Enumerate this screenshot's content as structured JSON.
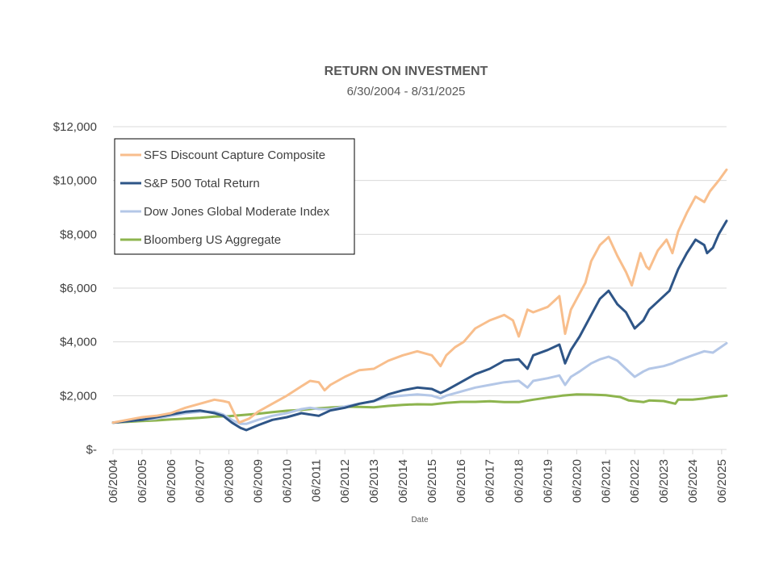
{
  "chart_data": {
    "type": "line",
    "title": "RETURN ON INVESTMENT",
    "subtitle": "6/30/2004 - 8/31/2025",
    "xlabel": "Date",
    "ylabel": "",
    "ylim": [
      0,
      12000
    ],
    "yticks": [
      0,
      2000,
      4000,
      6000,
      8000,
      10000,
      12000
    ],
    "ytick_labels": [
      "$-",
      "$2,000",
      "$4,000",
      "$6,000",
      "$8,000",
      "$10,000",
      "$12,000"
    ],
    "xlim": [
      2004.5,
      2025.67
    ],
    "xtick_labels": [
      "06/2004",
      "06/2005",
      "06/2006",
      "06/2007",
      "06/2008",
      "06/2009",
      "06/2010",
      "06/2011",
      "06/2012",
      "06/2013",
      "06/2014",
      "06/2015",
      "06/2016",
      "06/2017",
      "06/2018",
      "06/2019",
      "06/2020",
      "06/2021",
      "06/2022",
      "06/2023",
      "06/2024",
      "06/2025"
    ],
    "grid": true,
    "legend_position": "top-left",
    "series": [
      {
        "name": "SFS Discount Capture Composite",
        "color": "#f8be8c",
        "x": [
          2004.5,
          2005.0,
          2005.5,
          2006.0,
          2006.5,
          2007.0,
          2007.5,
          2008.0,
          2008.3,
          2008.5,
          2008.7,
          2008.85,
          2009.2,
          2009.5,
          2010.0,
          2010.5,
          2011.0,
          2011.3,
          2011.6,
          2011.8,
          2012.0,
          2012.5,
          2013.0,
          2013.5,
          2014.0,
          2014.5,
          2015.0,
          2015.5,
          2015.8,
          2016.0,
          2016.3,
          2016.6,
          2017.0,
          2017.5,
          2018.0,
          2018.3,
          2018.5,
          2018.8,
          2019.0,
          2019.5,
          2019.9,
          2020.1,
          2020.3,
          2020.5,
          2020.8,
          2021.0,
          2021.3,
          2021.6,
          2021.9,
          2022.2,
          2022.4,
          2022.7,
          2022.9,
          2023.0,
          2023.3,
          2023.6,
          2023.8,
          2024.0,
          2024.3,
          2024.6,
          2024.9,
          2025.1,
          2025.4,
          2025.67
        ],
        "values": [
          1000,
          1100,
          1200,
          1250,
          1350,
          1550,
          1700,
          1850,
          1800,
          1750,
          1300,
          1000,
          1150,
          1400,
          1700,
          2000,
          2350,
          2550,
          2500,
          2200,
          2400,
          2700,
          2950,
          3000,
          3300,
          3500,
          3650,
          3500,
          3100,
          3500,
          3800,
          4000,
          4500,
          4800,
          5000,
          4800,
          4200,
          5200,
          5100,
          5300,
          5700,
          4300,
          5200,
          5600,
          6200,
          7000,
          7600,
          7900,
          7200,
          6600,
          6100,
          7300,
          6800,
          6700,
          7400,
          7800,
          7300,
          8100,
          8800,
          9400,
          9200,
          9600,
          10000,
          10400
        ]
      },
      {
        "name": "S&P 500 Total Return",
        "color": "#2e5587",
        "x": [
          2004.5,
          2005.0,
          2005.5,
          2006.0,
          2006.5,
          2007.0,
          2007.5,
          2008.0,
          2008.3,
          2008.6,
          2008.9,
          2009.1,
          2009.5,
          2010.0,
          2010.5,
          2011.0,
          2011.3,
          2011.6,
          2012.0,
          2012.5,
          2013.0,
          2013.5,
          2014.0,
          2014.5,
          2015.0,
          2015.5,
          2015.8,
          2016.0,
          2016.5,
          2017.0,
          2017.5,
          2018.0,
          2018.5,
          2018.8,
          2019.0,
          2019.5,
          2019.9,
          2020.1,
          2020.3,
          2020.6,
          2021.0,
          2021.3,
          2021.6,
          2021.9,
          2022.2,
          2022.5,
          2022.8,
          2023.0,
          2023.3,
          2023.7,
          2024.0,
          2024.3,
          2024.6,
          2024.9,
          2025.0,
          2025.2,
          2025.4,
          2025.67
        ],
        "values": [
          1000,
          1050,
          1100,
          1200,
          1300,
          1400,
          1450,
          1350,
          1250,
          1000,
          800,
          720,
          900,
          1100,
          1200,
          1350,
          1300,
          1250,
          1450,
          1550,
          1700,
          1800,
          2050,
          2200,
          2300,
          2250,
          2100,
          2200,
          2500,
          2800,
          3000,
          3300,
          3350,
          3000,
          3500,
          3700,
          3900,
          3200,
          3700,
          4200,
          5000,
          5600,
          5900,
          5400,
          5100,
          4500,
          4800,
          5200,
          5500,
          5900,
          6700,
          7300,
          7800,
          7600,
          7300,
          7500,
          8000,
          8500
        ]
      },
      {
        "name": "Dow Jones Global Moderate Index",
        "color": "#b4c7e7",
        "x": [
          2004.5,
          2005.0,
          2005.5,
          2006.0,
          2006.5,
          2007.0,
          2007.5,
          2008.0,
          2008.3,
          2008.6,
          2008.9,
          2009.1,
          2009.5,
          2010.0,
          2010.5,
          2011.0,
          2011.3,
          2011.6,
          2012.0,
          2012.5,
          2013.0,
          2013.5,
          2014.0,
          2014.5,
          2015.0,
          2015.5,
          2015.8,
          2016.0,
          2016.5,
          2017.0,
          2017.5,
          2018.0,
          2018.5,
          2018.8,
          2019.0,
          2019.5,
          2019.9,
          2020.1,
          2020.3,
          2020.6,
          2021.0,
          2021.3,
          2021.6,
          2021.9,
          2022.2,
          2022.5,
          2022.8,
          2023.0,
          2023.5,
          2023.8,
          2024.0,
          2024.5,
          2024.9,
          2025.2,
          2025.67
        ],
        "values": [
          1000,
          1050,
          1100,
          1150,
          1250,
          1350,
          1400,
          1400,
          1300,
          1100,
          950,
          950,
          1100,
          1250,
          1350,
          1500,
          1550,
          1500,
          1500,
          1600,
          1700,
          1800,
          1950,
          2000,
          2050,
          2000,
          1900,
          2000,
          2150,
          2300,
          2400,
          2500,
          2550,
          2300,
          2550,
          2650,
          2750,
          2400,
          2700,
          2900,
          3200,
          3350,
          3450,
          3300,
          3000,
          2700,
          2900,
          3000,
          3100,
          3200,
          3300,
          3500,
          3650,
          3600,
          3950
        ]
      },
      {
        "name": "Bloomberg US Aggregate",
        "color": "#8db44e",
        "x": [
          2004.5,
          2005.0,
          2005.5,
          2006.0,
          2006.5,
          2007.0,
          2007.5,
          2008.0,
          2008.5,
          2009.0,
          2009.5,
          2010.0,
          2010.5,
          2011.0,
          2011.5,
          2012.0,
          2012.5,
          2013.0,
          2013.5,
          2014.0,
          2014.5,
          2015.0,
          2015.5,
          2016.0,
          2016.5,
          2017.0,
          2017.5,
          2018.0,
          2018.5,
          2019.0,
          2019.5,
          2020.0,
          2020.5,
          2021.0,
          2021.5,
          2022.0,
          2022.3,
          2022.8,
          2023.0,
          2023.5,
          2023.9,
          2024.0,
          2024.5,
          2024.9,
          2025.2,
          2025.67
        ],
        "values": [
          1000,
          1030,
          1060,
          1080,
          1120,
          1150,
          1180,
          1220,
          1240,
          1280,
          1330,
          1390,
          1440,
          1470,
          1520,
          1560,
          1590,
          1580,
          1570,
          1620,
          1660,
          1680,
          1670,
          1730,
          1770,
          1770,
          1790,
          1760,
          1760,
          1850,
          1930,
          2000,
          2050,
          2040,
          2020,
          1950,
          1820,
          1760,
          1820,
          1800,
          1700,
          1850,
          1850,
          1900,
          1950,
          2000
        ]
      }
    ]
  }
}
